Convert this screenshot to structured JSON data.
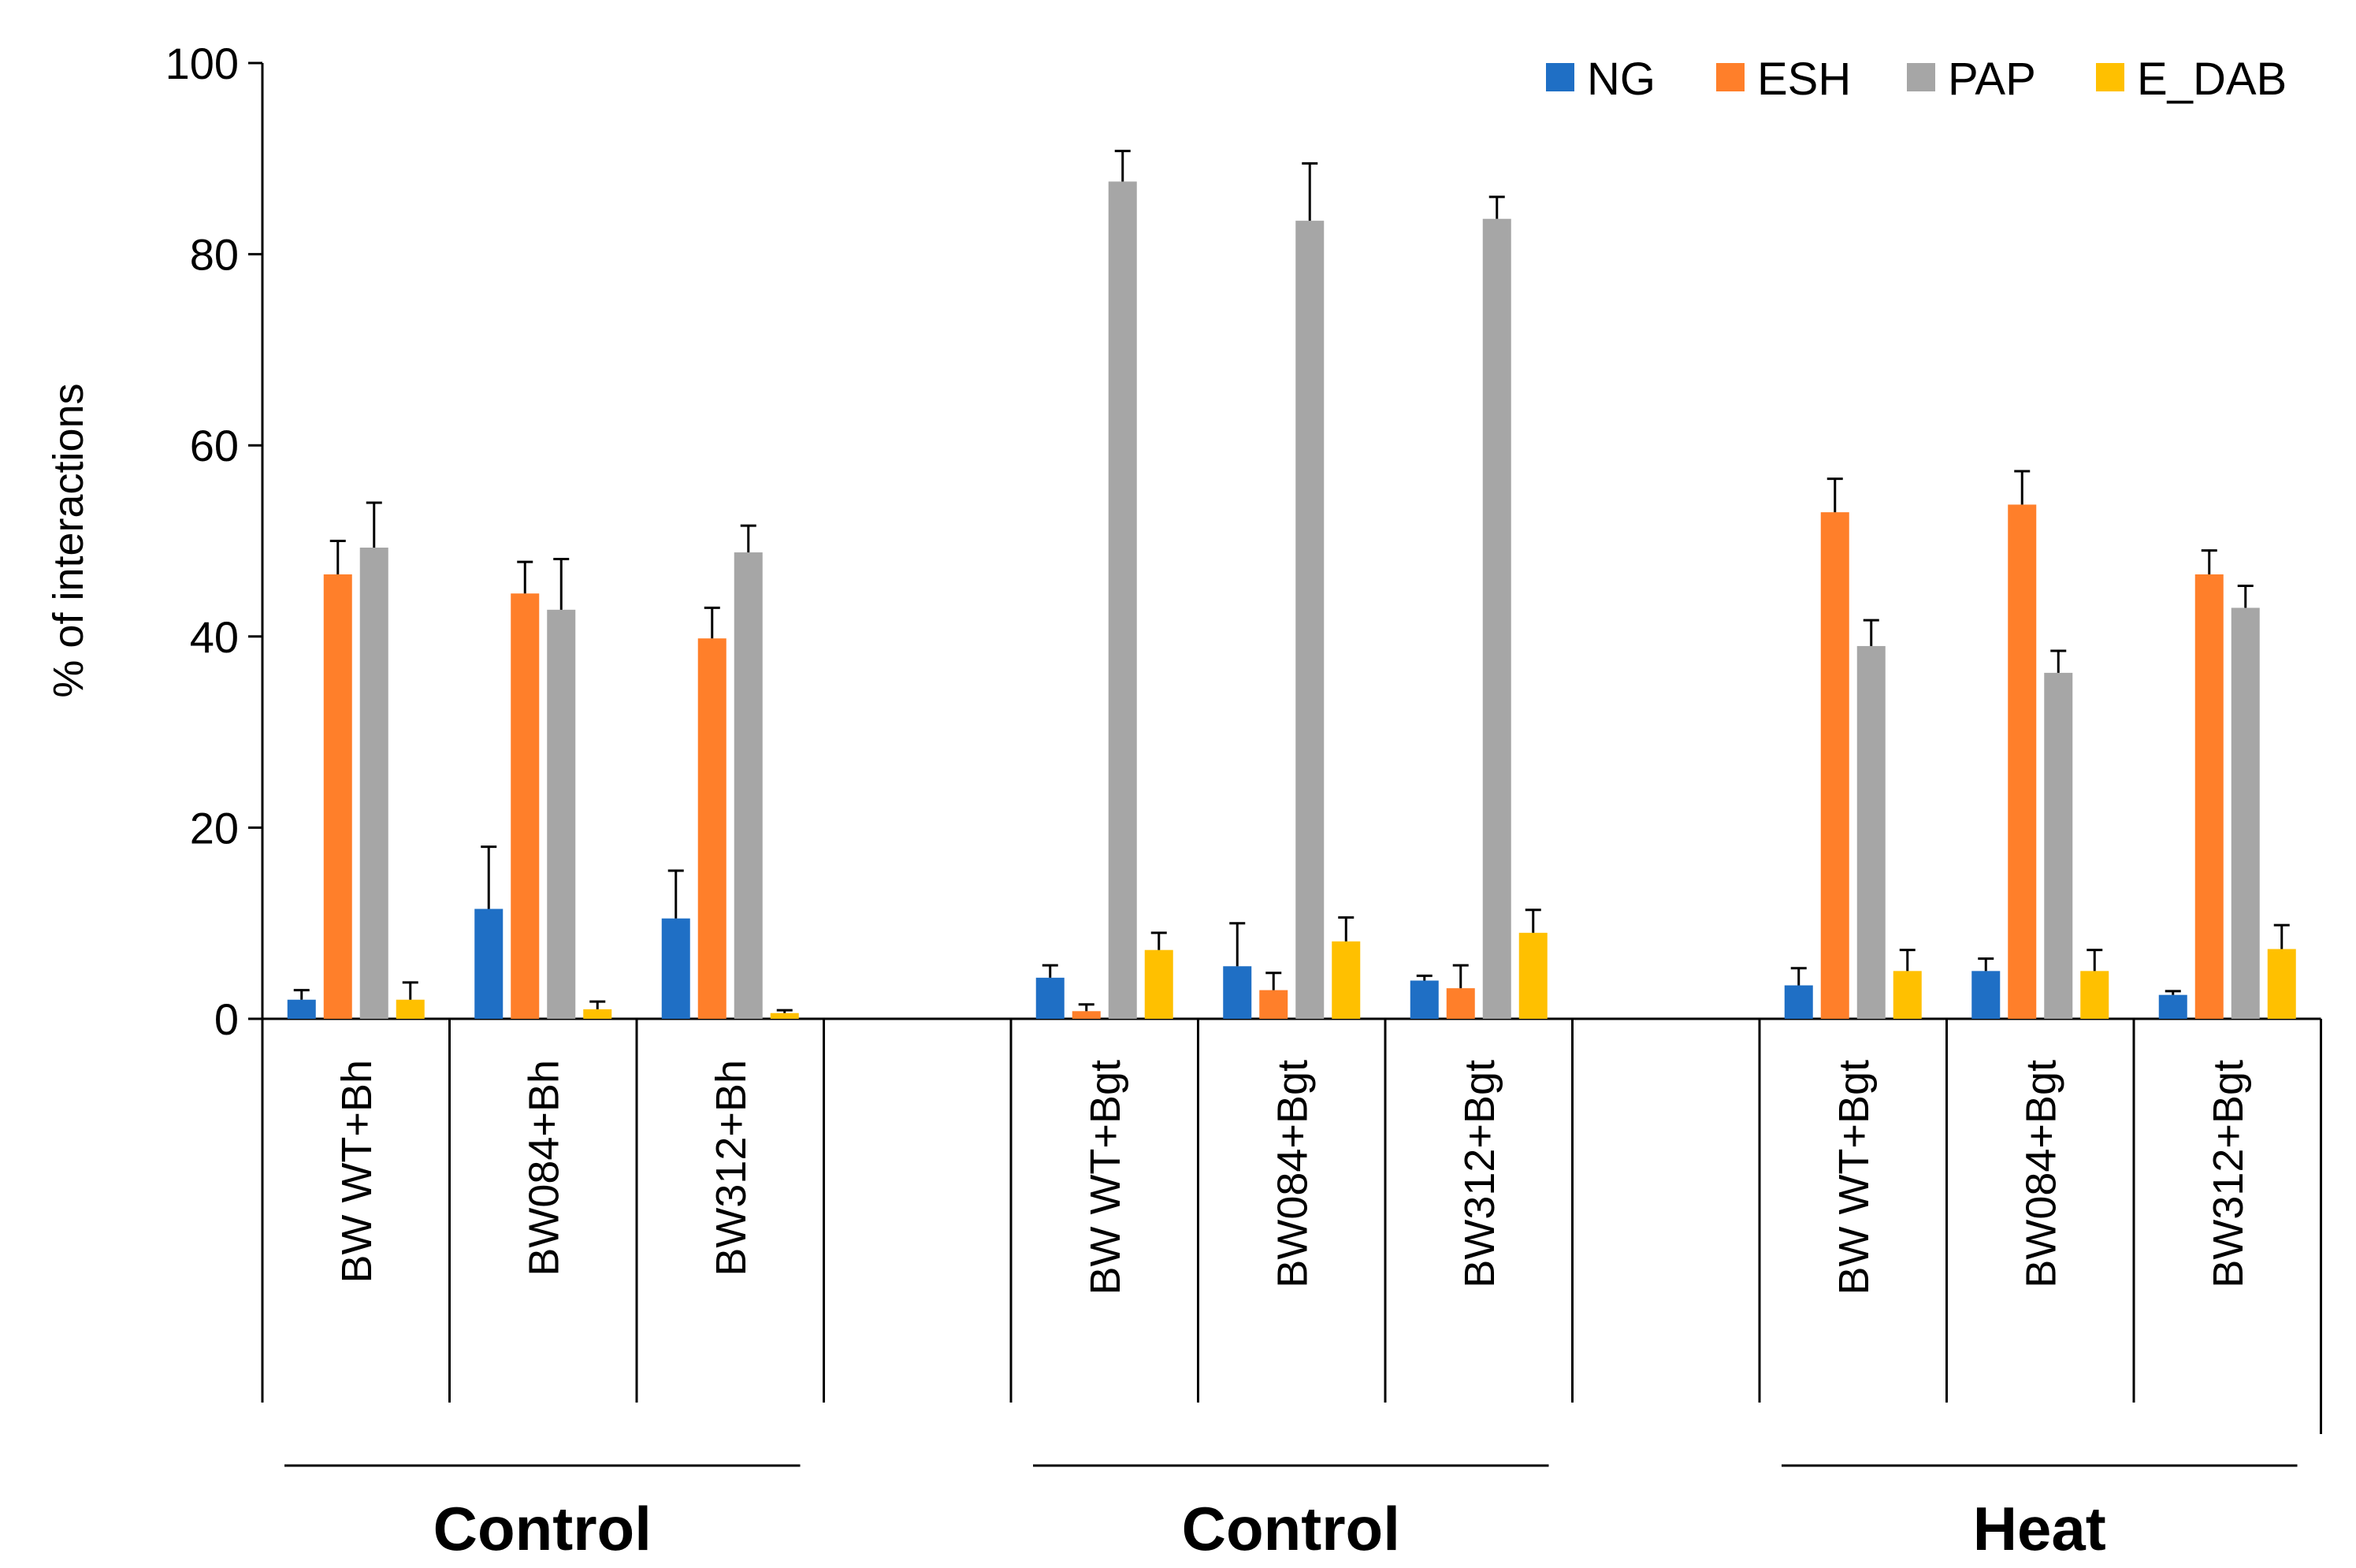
{
  "chart_data": {
    "type": "bar",
    "ylabel": "% of interactions",
    "ylim": [
      0,
      100
    ],
    "yticks": [
      0,
      20,
      40,
      60,
      80,
      100
    ],
    "categories": [
      "BW WT+Bh",
      "BW084+Bh",
      "BW312+Bh",
      "",
      "BW WT+Bgt",
      "BW084+Bgt",
      "BW312+Bgt",
      "",
      "BW WT+Bgt",
      "BW084+Bgt",
      "BW312+Bgt"
    ],
    "groups": [
      {
        "label": "Control",
        "categories": [
          0,
          1,
          2
        ]
      },
      {
        "label": "Control",
        "categories": [
          4,
          5,
          6
        ]
      },
      {
        "label": "Heat",
        "categories": [
          8,
          9,
          10
        ]
      }
    ],
    "legend_position": "top-right",
    "series": [
      {
        "name": "NG",
        "color": "#1f6fc5",
        "values": [
          2,
          11.5,
          10.5,
          null,
          4.3,
          5.5,
          4,
          null,
          3.5,
          5,
          2.5
        ],
        "errors": [
          1,
          6.5,
          5,
          null,
          1.3,
          4.5,
          0.5,
          null,
          1.8,
          1.3,
          0.4
        ]
      },
      {
        "name": "ESH",
        "color": "#ff7f2a",
        "values": [
          46.5,
          44.5,
          39.8,
          null,
          0.8,
          3,
          3.2,
          null,
          53,
          53.8,
          46.5
        ],
        "errors": [
          3.5,
          3.3,
          3.2,
          null,
          0.7,
          1.8,
          2.4,
          null,
          3.5,
          3.5,
          2.5
        ]
      },
      {
        "name": "PAP",
        "color": "#a6a6a6",
        "values": [
          49.3,
          42.8,
          48.8,
          null,
          87.6,
          83.5,
          83.7,
          null,
          39,
          36.2,
          43
        ],
        "errors": [
          4.7,
          5.3,
          2.8,
          null,
          3.2,
          6,
          2.3,
          null,
          2.7,
          2.3,
          2.3
        ]
      },
      {
        "name": "E_DAB",
        "color": "#ffc000",
        "values": [
          2,
          1,
          0.6,
          null,
          7.2,
          8.1,
          9,
          null,
          5,
          5,
          7.3
        ],
        "errors": [
          1.8,
          0.8,
          0.3,
          null,
          1.8,
          2.5,
          2.4,
          null,
          2.2,
          2.2,
          2.5
        ]
      }
    ]
  }
}
